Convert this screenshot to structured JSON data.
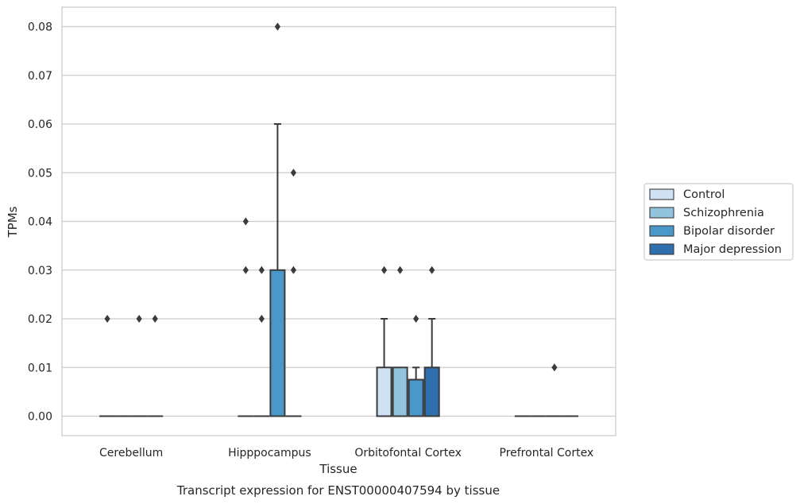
{
  "chart_data": {
    "type": "box",
    "title": "",
    "caption": "Transcript expression for ENST00000407594 by tissue",
    "xlabel": "Tissue",
    "ylabel": "TPMs",
    "ylim": [
      -0.004,
      0.084
    ],
    "yticks": [
      0.0,
      0.01,
      0.02,
      0.03,
      0.04,
      0.05,
      0.06,
      0.07,
      0.08
    ],
    "ytick_labels": [
      "0.00",
      "0.01",
      "0.02",
      "0.03",
      "0.04",
      "0.05",
      "0.06",
      "0.07",
      "0.08"
    ],
    "grid": "horizontal",
    "legend_position": "right",
    "categories": [
      "Cerebellum",
      "Hipppocampus",
      "Orbitofontal Cortex",
      "Prefrontal Cortex"
    ],
    "series": [
      {
        "name": "Control",
        "color": "#cfe1f2",
        "boxes": [
          {
            "q1": 0,
            "median": 0,
            "q3": 0,
            "whisker_low": 0,
            "whisker_high": 0,
            "outliers": [
              0.02
            ]
          },
          {
            "q1": 0,
            "median": 0,
            "q3": 0,
            "whisker_low": 0,
            "whisker_high": 0,
            "outliers": [
              0.04,
              0.03
            ]
          },
          {
            "q1": 0,
            "median": 0,
            "q3": 0.01,
            "whisker_low": 0,
            "whisker_high": 0.02,
            "outliers": [
              0.03
            ]
          },
          {
            "q1": 0,
            "median": 0,
            "q3": 0,
            "whisker_low": 0,
            "whisker_high": 0,
            "outliers": []
          }
        ]
      },
      {
        "name": "Schizophrenia",
        "color": "#93c4de",
        "boxes": [
          {
            "q1": 0,
            "median": 0,
            "q3": 0,
            "whisker_low": 0,
            "whisker_high": 0,
            "outliers": []
          },
          {
            "q1": 0,
            "median": 0,
            "q3": 0,
            "whisker_low": 0,
            "whisker_high": 0,
            "outliers": [
              0.03,
              0.02
            ]
          },
          {
            "q1": 0,
            "median": 0,
            "q3": 0.01,
            "whisker_low": 0,
            "whisker_high": 0.01,
            "outliers": [
              0.03
            ]
          },
          {
            "q1": 0,
            "median": 0,
            "q3": 0,
            "whisker_low": 0,
            "whisker_high": 0,
            "outliers": []
          }
        ]
      },
      {
        "name": "Bipolar disorder",
        "color": "#4a98c9",
        "boxes": [
          {
            "q1": 0,
            "median": 0,
            "q3": 0,
            "whisker_low": 0,
            "whisker_high": 0,
            "outliers": [
              0.02
            ]
          },
          {
            "q1": 0,
            "median": 0,
            "q3": 0.03,
            "whisker_low": 0,
            "whisker_high": 0.06,
            "outliers": [
              0.08
            ]
          },
          {
            "q1": 0,
            "median": 0,
            "q3": 0.0075,
            "whisker_low": 0,
            "whisker_high": 0.01,
            "outliers": [
              0.02
            ]
          },
          {
            "q1": 0,
            "median": 0,
            "q3": 0,
            "whisker_low": 0,
            "whisker_high": 0,
            "outliers": [
              0.01
            ]
          }
        ]
      },
      {
        "name": "Major depression",
        "color": "#2f6fae",
        "boxes": [
          {
            "q1": 0,
            "median": 0,
            "q3": 0,
            "whisker_low": 0,
            "whisker_high": 0,
            "outliers": [
              0.02
            ]
          },
          {
            "q1": 0,
            "median": 0,
            "q3": 0,
            "whisker_low": 0,
            "whisker_high": 0,
            "outliers": [
              0.05,
              0.03
            ]
          },
          {
            "q1": 0,
            "median": 0,
            "q3": 0.01,
            "whisker_low": 0,
            "whisker_high": 0.02,
            "outliers": [
              0.03
            ]
          },
          {
            "q1": 0,
            "median": 0,
            "q3": 0,
            "whisker_low": 0,
            "whisker_high": 0,
            "outliers": []
          }
        ]
      }
    ]
  }
}
